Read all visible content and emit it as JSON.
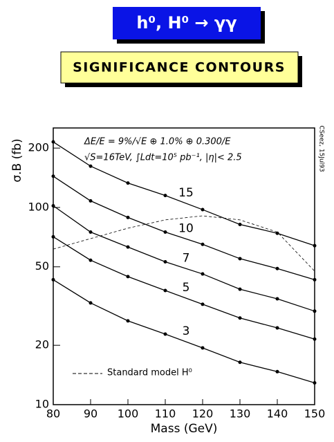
{
  "chart_data": {
    "type": "line",
    "title": "h⁰, H⁰ → γγ",
    "subtitle": "SIGNIFICANCE CONTOURS",
    "annotations": [
      "ΔE/E = 9%/√E ⊕ 1.0% ⊕ 0.300/E",
      "√S=16TeV, ∫Ldt=10⁵ pb⁻¹, |η|< 2.5"
    ],
    "side_note": "CSeez, 15Jul93",
    "x_label": "Mass (GeV)",
    "y_label": "σ.B (fb)",
    "x": [
      80,
      90,
      100,
      110,
      120,
      130,
      140,
      150
    ],
    "series": [
      {
        "name": "15",
        "color": "#000000",
        "values": [
          215,
          162,
          133,
          115,
          97.5,
          82,
          74,
          64
        ]
      },
      {
        "name": "10",
        "color": "#000000",
        "values": [
          144,
          108,
          89,
          75,
          65,
          55,
          49,
          43
        ]
      },
      {
        "name": "7",
        "color": "#000000",
        "values": [
          102,
          75,
          63,
          53,
          46,
          38.5,
          34.4,
          29.8
        ]
      },
      {
        "name": "5",
        "color": "#000000",
        "values": [
          71,
          54,
          44.6,
          37.9,
          32.3,
          27.5,
          24.5,
          21.5
        ]
      },
      {
        "name": "3",
        "color": "#000000",
        "values": [
          43,
          32.8,
          26.6,
          22.8,
          19.4,
          16.4,
          14.7,
          12.9
        ]
      }
    ],
    "reference": {
      "name": "Standard model H⁰",
      "color": "#000000",
      "dashed": true,
      "values": [
        61.5,
        69.5,
        78.5,
        86.5,
        90.7,
        86.5,
        75,
        47.5
      ]
    },
    "xlim": [
      80,
      150
    ],
    "xticks": [
      80,
      90,
      100,
      110,
      120,
      130,
      140,
      150
    ],
    "ylim": [
      10,
      253
    ],
    "yticks": [
      10,
      20,
      50,
      100,
      200
    ],
    "log_y": true
  }
}
